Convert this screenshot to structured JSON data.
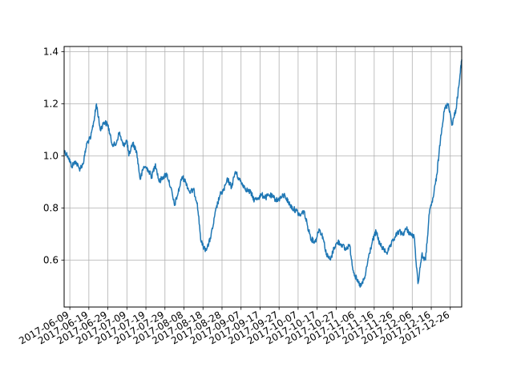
{
  "chart_data": {
    "type": "line",
    "title": "",
    "xlabel": "",
    "ylabel": "",
    "grid": true,
    "legend": "none",
    "x_range": [
      "2017-06-06",
      "2018-01-01"
    ],
    "ylim": [
      0.42,
      1.42
    ],
    "y_ticks": [
      0.6,
      0.8,
      1.0,
      1.2,
      1.4
    ],
    "x_ticks": [
      "2017-06-09",
      "2017-06-19",
      "2017-06-29",
      "2017-07-09",
      "2017-07-19",
      "2017-07-29",
      "2017-08-08",
      "2017-08-18",
      "2017-08-28",
      "2017-09-07",
      "2017-09-17",
      "2017-09-27",
      "2017-10-07",
      "2017-10-17",
      "2017-10-27",
      "2017-11-06",
      "2017-11-16",
      "2017-11-26",
      "2017-12-06",
      "2017-12-16",
      "2017-12-26"
    ],
    "series": [
      {
        "color": "#1f77b4",
        "x": [
          "2017-06-06",
          "2017-06-08",
          "2017-06-10",
          "2017-06-12",
          "2017-06-14",
          "2017-06-16",
          "2017-06-18",
          "2017-06-20",
          "2017-06-22",
          "2017-06-23",
          "2017-06-25",
          "2017-06-27",
          "2017-06-29",
          "2017-07-01",
          "2017-07-03",
          "2017-07-05",
          "2017-07-07",
          "2017-07-09",
          "2017-07-10",
          "2017-07-12",
          "2017-07-14",
          "2017-07-16",
          "2017-07-18",
          "2017-07-20",
          "2017-07-22",
          "2017-07-24",
          "2017-07-26",
          "2017-07-28",
          "2017-07-30",
          "2017-08-01",
          "2017-08-03",
          "2017-08-05",
          "2017-08-07",
          "2017-08-09",
          "2017-08-11",
          "2017-08-13",
          "2017-08-15",
          "2017-08-17",
          "2017-08-19",
          "2017-08-21",
          "2017-08-23",
          "2017-08-25",
          "2017-08-27",
          "2017-08-29",
          "2017-08-31",
          "2017-09-02",
          "2017-09-04",
          "2017-09-06",
          "2017-09-08",
          "2017-09-10",
          "2017-09-12",
          "2017-09-14",
          "2017-09-16",
          "2017-09-18",
          "2017-09-20",
          "2017-09-22",
          "2017-09-24",
          "2017-09-26",
          "2017-09-28",
          "2017-09-30",
          "2017-10-02",
          "2017-10-04",
          "2017-10-06",
          "2017-10-08",
          "2017-10-10",
          "2017-10-12",
          "2017-10-14",
          "2017-10-16",
          "2017-10-18",
          "2017-10-20",
          "2017-10-22",
          "2017-10-24",
          "2017-10-26",
          "2017-10-28",
          "2017-10-30",
          "2017-11-01",
          "2017-11-03",
          "2017-11-05",
          "2017-11-07",
          "2017-11-09",
          "2017-11-11",
          "2017-11-13",
          "2017-11-15",
          "2017-11-17",
          "2017-11-19",
          "2017-11-21",
          "2017-11-23",
          "2017-11-25",
          "2017-11-27",
          "2017-11-29",
          "2017-12-01",
          "2017-12-03",
          "2017-12-05",
          "2017-12-07",
          "2017-12-09",
          "2017-12-11",
          "2017-12-13",
          "2017-12-15",
          "2017-12-17",
          "2017-12-19",
          "2017-12-21",
          "2017-12-23",
          "2017-12-25",
          "2017-12-27",
          "2017-12-29",
          "2017-12-31",
          "2018-01-01"
        ],
        "y": [
          1.02,
          1.0,
          0.96,
          0.98,
          0.95,
          0.97,
          1.05,
          1.07,
          1.15,
          1.2,
          1.1,
          1.13,
          1.12,
          1.05,
          1.04,
          1.09,
          1.04,
          1.06,
          1.0,
          1.05,
          1.02,
          0.91,
          0.96,
          0.95,
          0.92,
          0.97,
          0.9,
          0.92,
          0.93,
          0.88,
          0.81,
          0.86,
          0.92,
          0.9,
          0.86,
          0.87,
          0.82,
          0.67,
          0.64,
          0.66,
          0.72,
          0.8,
          0.85,
          0.87,
          0.91,
          0.88,
          0.94,
          0.91,
          0.89,
          0.87,
          0.86,
          0.83,
          0.84,
          0.85,
          0.84,
          0.85,
          0.84,
          0.83,
          0.84,
          0.85,
          0.82,
          0.8,
          0.79,
          0.77,
          0.79,
          0.73,
          0.68,
          0.67,
          0.72,
          0.69,
          0.62,
          0.6,
          0.65,
          0.67,
          0.66,
          0.64,
          0.66,
          0.56,
          0.52,
          0.5,
          0.53,
          0.61,
          0.67,
          0.71,
          0.66,
          0.64,
          0.63,
          0.66,
          0.69,
          0.71,
          0.7,
          0.72,
          0.7,
          0.69,
          0.51,
          0.62,
          0.6,
          0.78,
          0.84,
          0.93,
          1.08,
          1.18,
          1.2,
          1.12,
          1.18,
          1.3,
          1.37
        ]
      }
    ]
  }
}
